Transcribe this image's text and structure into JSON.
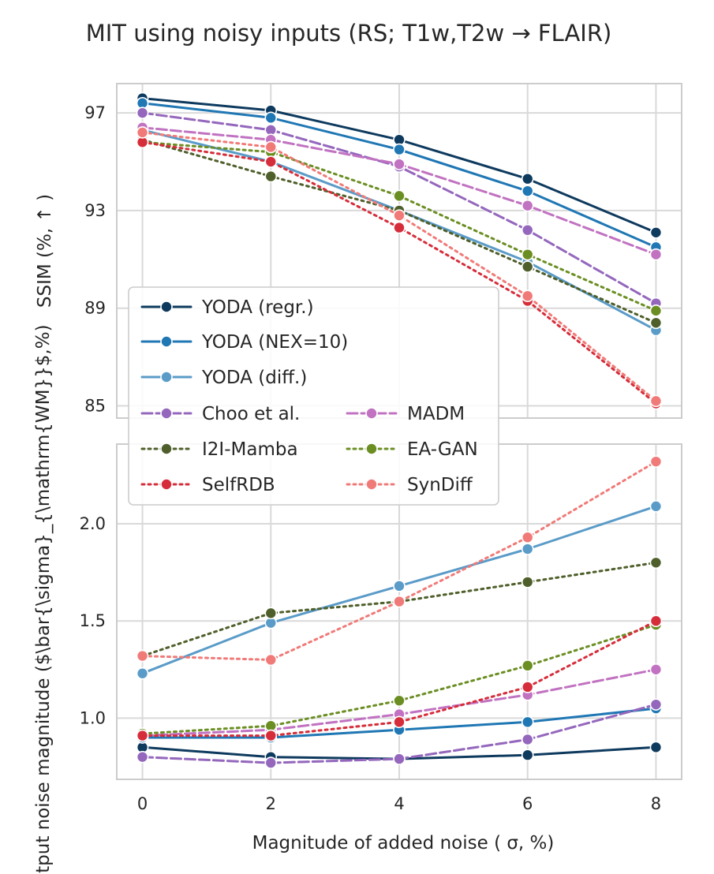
{
  "title": "MIT using noisy inputs (RS; T1w,T2w  → FLAIR)",
  "xlabel": "Magnitude of added noise ( σ, %)",
  "chart_data": [
    {
      "type": "line",
      "ylabel": "SSIM (%,  ↑ )",
      "x": [
        0,
        2,
        4,
        6,
        8
      ],
      "xticks": [
        "0",
        "2",
        "4",
        "6",
        "8"
      ],
      "yticks": [
        "85",
        "89",
        "93",
        "97"
      ],
      "xlim": [
        -0.4,
        8.4
      ],
      "ylim": [
        84.5,
        98.2
      ],
      "grid": true,
      "legend": "lower-left",
      "series": [
        {
          "name": "YODA (regr.)",
          "values": [
            97.6,
            97.1,
            95.9,
            94.3,
            92.1
          ],
          "color": "#0e3a5e",
          "dash": "solid"
        },
        {
          "name": "YODA (NEX=10)",
          "values": [
            97.4,
            96.8,
            95.5,
            93.8,
            91.5
          ],
          "color": "#1f77b4",
          "dash": "solid"
        },
        {
          "name": "YODA (diff.)",
          "values": [
            96.3,
            95.0,
            93.0,
            90.9,
            88.1
          ],
          "color": "#5a9bc8",
          "dash": "solid"
        },
        {
          "name": "Choo et al.",
          "values": [
            97.0,
            96.3,
            94.8,
            92.2,
            89.2
          ],
          "color": "#9467bd",
          "dash": "dashed"
        },
        {
          "name": "MADM",
          "values": [
            96.4,
            95.9,
            94.9,
            93.2,
            91.2
          ],
          "color": "#c172c1",
          "dash": "dashed"
        },
        {
          "name": "I2I-Mamba",
          "values": [
            95.9,
            94.4,
            93.0,
            90.7,
            88.4
          ],
          "color": "#4f5f2b",
          "dash": "dotted"
        },
        {
          "name": "EA-GAN",
          "values": [
            95.8,
            95.4,
            93.6,
            91.2,
            88.9
          ],
          "color": "#6b8e23",
          "dash": "dotted"
        },
        {
          "name": "SelfRDB",
          "values": [
            95.8,
            95.0,
            92.3,
            89.3,
            85.1
          ],
          "color": "#d62d3a",
          "dash": "dotted"
        },
        {
          "name": "SynDiff",
          "values": [
            96.2,
            95.6,
            92.8,
            89.5,
            85.2
          ],
          "color": "#f07a78",
          "dash": "dotted"
        }
      ]
    },
    {
      "type": "line",
      "ylabel": "Output noise magnitude ($\\bar{\\sigma}_{\\mathrm{WM}}$,%)",
      "x": [
        0,
        2,
        4,
        6,
        8
      ],
      "xticks": [
        "0",
        "2",
        "4",
        "6",
        "8"
      ],
      "yticks": [
        "1.0",
        "1.5",
        "2.0"
      ],
      "xlim": [
        -0.4,
        8.4
      ],
      "ylim": [
        0.685,
        2.41
      ],
      "grid": true,
      "series": [
        {
          "name": "YODA (regr.)",
          "values": [
            0.85,
            0.8,
            0.79,
            0.81,
            0.85
          ],
          "color": "#0e3a5e",
          "dash": "solid"
        },
        {
          "name": "YODA (NEX=10)",
          "values": [
            0.9,
            0.9,
            0.94,
            0.98,
            1.05
          ],
          "color": "#1f77b4",
          "dash": "solid"
        },
        {
          "name": "YODA (diff.)",
          "values": [
            1.23,
            1.49,
            1.68,
            1.87,
            2.09
          ],
          "color": "#5a9bc8",
          "dash": "solid"
        },
        {
          "name": "Choo et al.",
          "values": [
            0.8,
            0.77,
            0.79,
            0.89,
            1.07
          ],
          "color": "#9467bd",
          "dash": "dashed"
        },
        {
          "name": "MADM",
          "values": [
            0.91,
            0.94,
            1.02,
            1.12,
            1.25
          ],
          "color": "#c172c1",
          "dash": "dashed"
        },
        {
          "name": "I2I-Mamba",
          "values": [
            1.32,
            1.54,
            1.6,
            1.7,
            1.8
          ],
          "color": "#4f5f2b",
          "dash": "dotted"
        },
        {
          "name": "EA-GAN",
          "values": [
            0.92,
            0.96,
            1.09,
            1.27,
            1.48
          ],
          "color": "#6b8e23",
          "dash": "dotted"
        },
        {
          "name": "SelfRDB",
          "values": [
            0.91,
            0.91,
            0.98,
            1.16,
            1.5
          ],
          "color": "#d62d3a",
          "dash": "dotted"
        },
        {
          "name": "SynDiff",
          "values": [
            1.32,
            1.3,
            1.6,
            1.93,
            2.32
          ],
          "color": "#f07a78",
          "dash": "dotted"
        }
      ]
    }
  ]
}
